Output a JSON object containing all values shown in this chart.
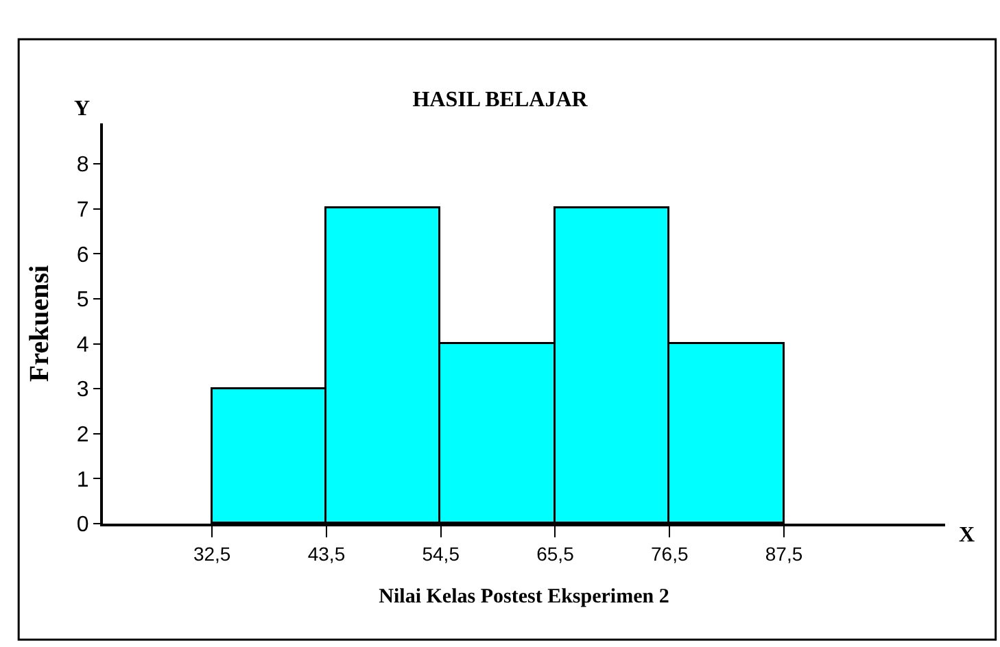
{
  "chart_data": {
    "type": "histogram",
    "title": "HASIL BELAJAR",
    "xlabel": "Nilai Kelas Postest Eksperimen 2",
    "ylabel": "Frekuensi",
    "bins": [
      32.5,
      43.5,
      54.5,
      65.5,
      76.5,
      87.5
    ],
    "values": [
      3,
      7,
      4,
      7,
      4
    ],
    "color": "#00ffff",
    "xlim": [
      22,
      103
    ],
    "ylim": [
      0,
      8.9
    ],
    "xticks": [
      {
        "value": 32.5,
        "label": "32,5"
      },
      {
        "value": 43.5,
        "label": "43,5"
      },
      {
        "value": 54.5,
        "label": "54,5"
      },
      {
        "value": 65.5,
        "label": "65,5"
      },
      {
        "value": 76.5,
        "label": "76,5"
      },
      {
        "value": 87.5,
        "label": "87,5"
      }
    ],
    "yticks": [
      0,
      1,
      2,
      3,
      4,
      5,
      6,
      7,
      8
    ],
    "annotations": [
      "Y",
      "X"
    ]
  }
}
